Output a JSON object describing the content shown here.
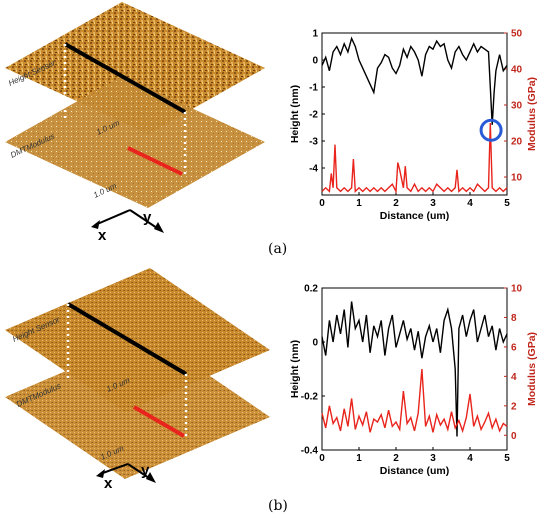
{
  "panels": [
    {
      "label": "(a)",
      "image_labels": {
        "top": "Height Sensor",
        "bottom": "DMTModulus",
        "scale_top": "1.0 um",
        "scale_bottom": "1.0 um",
        "axis_x": "x",
        "axis_y": "y"
      },
      "colors": {
        "surface": "#c98a2e",
        "surface_dark": "#7a4a12",
        "height_line": "#000000",
        "modulus_line": "#e8241c",
        "circle": "#2a5bd7"
      },
      "chart_data": {
        "type": "line",
        "xlabel": "Distance (um)",
        "ylabel_left": "Height (nm)",
        "ylabel_right": "Modulus (GPa)",
        "xlim": [
          0,
          5
        ],
        "ylim_left": [
          -5,
          1
        ],
        "ylim_right": [
          5,
          50
        ],
        "xticks": [
          "0",
          "1",
          "2",
          "3",
          "4",
          "5"
        ],
        "yticks_left": [
          "1",
          "0",
          "-1",
          "-2",
          "-3",
          "-4"
        ],
        "yticks_right": [
          "50",
          "40",
          "30",
          "20",
          "10"
        ],
        "annotation": {
          "type": "circle",
          "x": 4.57,
          "y_left": -2.6
        },
        "series": [
          {
            "axis": "left",
            "color": "#000000",
            "x": [
              0,
              0.1,
              0.2,
              0.3,
              0.4,
              0.5,
              0.6,
              0.7,
              0.8,
              0.9,
              1.0,
              1.1,
              1.2,
              1.3,
              1.4,
              1.5,
              1.6,
              1.7,
              1.8,
              1.9,
              2.0,
              2.1,
              2.2,
              2.3,
              2.4,
              2.5,
              2.6,
              2.7,
              2.8,
              2.9,
              3.0,
              3.1,
              3.2,
              3.3,
              3.4,
              3.5,
              3.6,
              3.7,
              3.8,
              3.9,
              4.0,
              4.1,
              4.2,
              4.3,
              4.4,
              4.5,
              4.55,
              4.6,
              4.65,
              4.7,
              4.8,
              4.9,
              5.0
            ],
            "y": [
              -0.2,
              0.1,
              -0.4,
              0.3,
              0.5,
              0.2,
              0.6,
              0.3,
              0.8,
              0.5,
              0.0,
              -0.3,
              -0.6,
              -0.9,
              -1.2,
              -0.3,
              -0.1,
              0.2,
              0.1,
              -0.3,
              -0.5,
              -0.2,
              0.4,
              0.1,
              0.5,
              0.3,
              0.0,
              -0.6,
              0.2,
              0.5,
              0.4,
              0.7,
              0.5,
              0.6,
              0.0,
              -0.3,
              0.3,
              0.5,
              0.2,
              0.0,
              0.3,
              0.6,
              0.3,
              0.5,
              0.4,
              0.3,
              -1.0,
              -2.4,
              -1.2,
              -0.4,
              0.2,
              -0.4,
              -0.2
            ]
          },
          {
            "axis": "right",
            "color": "#e8241c",
            "x": [
              0,
              0.1,
              0.2,
              0.25,
              0.3,
              0.35,
              0.4,
              0.5,
              0.6,
              0.7,
              0.8,
              0.85,
              0.9,
              1.0,
              1.1,
              1.2,
              1.3,
              1.4,
              1.5,
              1.6,
              1.7,
              1.8,
              1.9,
              2.0,
              2.05,
              2.1,
              2.2,
              2.25,
              2.3,
              2.4,
              2.5,
              2.6,
              2.7,
              2.8,
              2.9,
              3.0,
              3.1,
              3.2,
              3.3,
              3.4,
              3.5,
              3.6,
              3.65,
              3.7,
              3.8,
              3.9,
              4.0,
              4.1,
              4.2,
              4.3,
              4.4,
              4.5,
              4.55,
              4.6,
              4.7,
              4.8,
              4.9,
              5.0
            ],
            "y": [
              6,
              7,
              6,
              11,
              7,
              19,
              7,
              6,
              7,
              6,
              7,
              15,
              6,
              7,
              6,
              7,
              6,
              7,
              6,
              7,
              6,
              7,
              8,
              6,
              14,
              12,
              7,
              13,
              7,
              6,
              8,
              6,
              7,
              6,
              7,
              6,
              8,
              7,
              6,
              7,
              6,
              7,
              12,
              6,
              7,
              6,
              7,
              6,
              8,
              7,
              6,
              7,
              25,
              7,
              6,
              7,
              6,
              7
            ]
          }
        ]
      }
    },
    {
      "label": "(b)",
      "image_labels": {
        "top": "Height Sensor",
        "bottom": "DMTModulus",
        "scale_top": "1.0 um",
        "scale_bottom": "1.0 um",
        "axis_x": "x",
        "axis_y": "y"
      },
      "colors": {
        "surface": "#c98a2e",
        "surface_dark": "#7a4a12",
        "height_line": "#000000",
        "modulus_line": "#e8241c"
      },
      "chart_data": {
        "type": "line",
        "xlabel": "Distance (um)",
        "ylabel_left": "Height (nm)",
        "ylabel_right": "Modulus (GPa)",
        "xlim": [
          0,
          5
        ],
        "ylim_left": [
          -0.4,
          0.2
        ],
        "ylim_right": [
          -1,
          10
        ],
        "xticks": [
          "0",
          "1",
          "2",
          "3",
          "4",
          "5"
        ],
        "yticks_left": [
          "0.2",
          "0",
          "-0.2",
          "-0.4"
        ],
        "yticks_right": [
          "10",
          "8",
          "6",
          "4",
          "2",
          "0"
        ],
        "series": [
          {
            "axis": "left",
            "color": "#000000",
            "x": [
              0,
              0.1,
              0.2,
              0.3,
              0.4,
              0.5,
              0.6,
              0.7,
              0.8,
              0.9,
              1.0,
              1.1,
              1.2,
              1.3,
              1.4,
              1.5,
              1.6,
              1.7,
              1.8,
              1.9,
              2.0,
              2.1,
              2.2,
              2.3,
              2.4,
              2.5,
              2.6,
              2.7,
              2.8,
              2.9,
              3.0,
              3.1,
              3.2,
              3.3,
              3.4,
              3.5,
              3.6,
              3.65,
              3.7,
              3.8,
              3.9,
              4.0,
              4.1,
              4.2,
              4.3,
              4.4,
              4.5,
              4.6,
              4.7,
              4.8,
              4.9,
              5.0
            ],
            "y": [
              0.02,
              -0.05,
              0.08,
              0.0,
              0.1,
              0.03,
              0.12,
              -0.02,
              0.15,
              0.05,
              0.08,
              0.0,
              0.1,
              -0.04,
              0.06,
              0.02,
              0.08,
              -0.05,
              0.05,
              0.1,
              -0.02,
              0.03,
              0.08,
              0.01,
              0.05,
              -0.03,
              0.04,
              -0.06,
              0.02,
              0.06,
              0.0,
              0.05,
              -0.04,
              0.08,
              0.12,
              0.05,
              -0.1,
              -0.35,
              0.05,
              0.1,
              0.02,
              0.08,
              0.12,
              0.0,
              0.05,
              0.1,
              0.02,
              0.06,
              -0.03,
              0.05,
              0.0,
              0.03
            ]
          },
          {
            "axis": "right",
            "color": "#e8241c",
            "x": [
              0,
              0.1,
              0.2,
              0.3,
              0.4,
              0.5,
              0.6,
              0.7,
              0.8,
              0.9,
              1.0,
              1.1,
              1.2,
              1.3,
              1.4,
              1.5,
              1.6,
              1.7,
              1.8,
              1.9,
              2.0,
              2.1,
              2.2,
              2.3,
              2.4,
              2.5,
              2.6,
              2.7,
              2.8,
              2.9,
              3.0,
              3.1,
              3.2,
              3.3,
              3.4,
              3.5,
              3.6,
              3.7,
              3.8,
              3.9,
              4.0,
              4.1,
              4.2,
              4.3,
              4.4,
              4.5,
              4.6,
              4.7,
              4.8,
              4.9,
              5.0
            ],
            "y": [
              1.5,
              0.5,
              2.0,
              0.8,
              1.2,
              0.3,
              1.8,
              0.6,
              2.5,
              0.4,
              1.3,
              0.7,
              1.6,
              0.2,
              1.1,
              0.9,
              1.4,
              0.5,
              1.7,
              0.6,
              0.9,
              0.4,
              3.0,
              0.8,
              1.2,
              0.3,
              1.5,
              4.5,
              0.6,
              1.3,
              0.2,
              1.4,
              0.7,
              1.1,
              0.4,
              1.6,
              0.5,
              1.0,
              0.3,
              1.2,
              2.8,
              0.6,
              1.3,
              0.4,
              0.9,
              1.5,
              0.5,
              1.1,
              0.3,
              0.8,
              0.6
            ]
          }
        ]
      }
    }
  ]
}
